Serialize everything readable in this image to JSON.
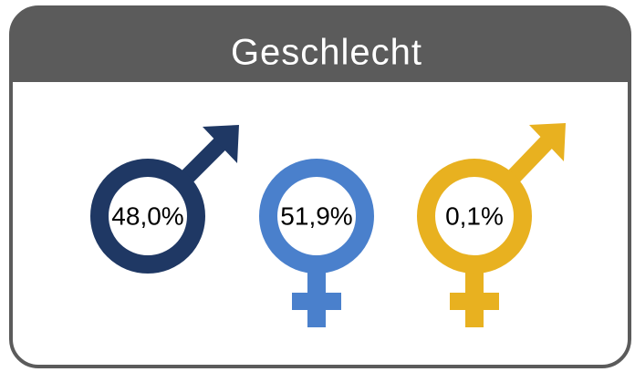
{
  "header": {
    "title": "Geschlecht"
  },
  "items": [
    {
      "label": "48,0%"
    },
    {
      "label": "51,9%"
    },
    {
      "label": "0,1%"
    }
  ]
}
